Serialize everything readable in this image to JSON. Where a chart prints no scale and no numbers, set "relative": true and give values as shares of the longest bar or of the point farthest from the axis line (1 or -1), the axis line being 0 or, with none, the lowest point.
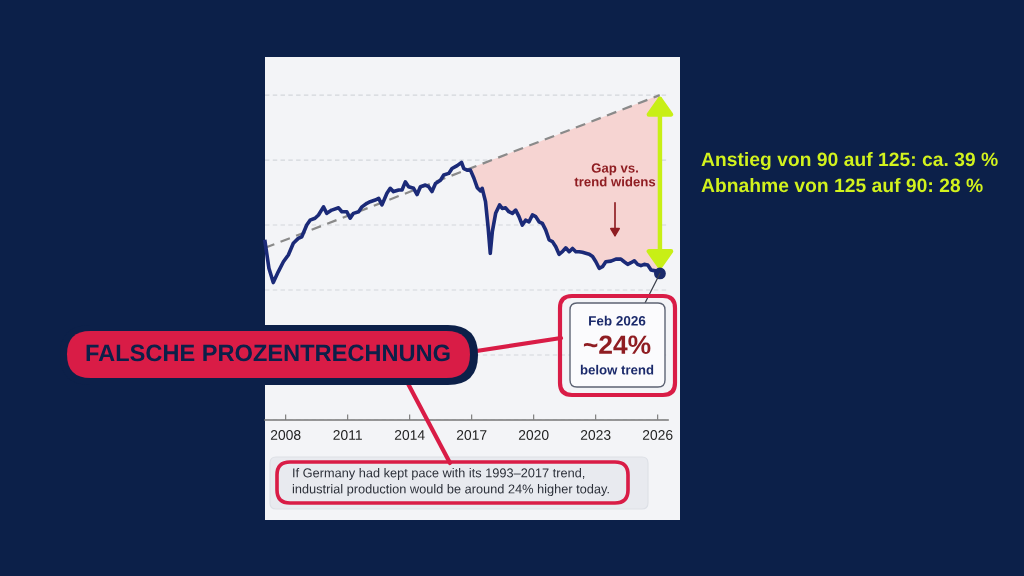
{
  "chart_data": {
    "type": "line",
    "relative": true,
    "tick_labels": "x",
    "grid": "y",
    "xlim": [
      2007.0,
      2026.5
    ],
    "xticks": [
      2008,
      2011,
      2014,
      2017,
      2020,
      2023,
      2026
    ],
    "series": [
      {
        "type": "area",
        "color": "#f6d4d2",
        "x": [
          2016.94,
          2017.11,
          2017.27,
          2017.43,
          2017.51,
          2017.67,
          2017.8,
          2017.9,
          2018.0,
          2018.16,
          2018.35,
          2018.48,
          2018.64,
          2018.8,
          2018.97,
          2019.13,
          2019.29,
          2019.45,
          2019.61,
          2019.77,
          2019.94,
          2020.1,
          2020.26,
          2020.42,
          2020.58,
          2020.75,
          2020.91,
          2021.07,
          2021.23,
          2021.39,
          2021.55,
          2021.72,
          2021.88,
          2022.04,
          2022.2,
          2022.36,
          2022.52,
          2022.69,
          2022.85,
          2023.01,
          2023.17,
          2023.33,
          2023.49,
          2023.74,
          2023.98,
          2024.22,
          2024.38,
          2024.55,
          2024.71,
          2024.87,
          2025.03,
          2025.19,
          2025.35,
          2025.52,
          2025.68,
          2025.89,
          2026.11
        ],
        "values": [
          0.775,
          0.779,
          0.783,
          0.787,
          0.789,
          0.793,
          0.796,
          0.798,
          0.801,
          0.805,
          0.809,
          0.812,
          0.816,
          0.82,
          0.825,
          0.828,
          0.832,
          0.836,
          0.84,
          0.844,
          0.848,
          0.852,
          0.856,
          0.86,
          0.864,
          0.868,
          0.872,
          0.876,
          0.88,
          0.884,
          0.888,
          0.892,
          0.896,
          0.9,
          0.904,
          0.908,
          0.912,
          0.916,
          0.92,
          0.924,
          0.928,
          0.932,
          0.936,
          0.942,
          0.948,
          0.954,
          0.958,
          0.962,
          0.966,
          0.97,
          0.974,
          0.978,
          0.982,
          0.986,
          0.99,
          0.995,
          1.0
        ]
      },
      {
        "color": "#8a8a8a",
        "line_style": "dashed",
        "x": [
          2007.0,
          2026.1
        ],
        "values": [
          0.53,
          1.0
        ]
      },
      {
        "color": "#1b2a78",
        "line_style": "solid",
        "x": [
          2007.0,
          2007.19,
          2007.4,
          2007.64,
          2007.89,
          2008.13,
          2008.37,
          2008.61,
          2008.78,
          2009.02,
          2009.18,
          2009.42,
          2009.59,
          2009.83,
          2009.99,
          2010.23,
          2010.56,
          2010.72,
          2010.96,
          2011.12,
          2011.28,
          2011.53,
          2011.69,
          2011.93,
          2012.09,
          2012.33,
          2012.5,
          2012.66,
          2012.9,
          2013.06,
          2013.22,
          2013.47,
          2013.63,
          2013.79,
          2013.95,
          2014.19,
          2014.36,
          2014.52,
          2014.76,
          2014.92,
          2015.08,
          2015.25,
          2015.49,
          2015.65,
          2015.89,
          2016.05,
          2016.3,
          2016.51,
          2016.62,
          2016.78,
          2016.94,
          2017.11,
          2017.27,
          2017.43,
          2017.51,
          2017.67,
          2017.8,
          2017.9,
          2018.0,
          2018.16,
          2018.35,
          2018.48,
          2018.64,
          2018.8,
          2018.97,
          2019.13,
          2019.29,
          2019.45,
          2019.61,
          2019.77,
          2019.94,
          2020.1,
          2020.26,
          2020.42,
          2020.58,
          2020.75,
          2020.91,
          2021.07,
          2021.23,
          2021.39,
          2021.55,
          2021.72,
          2021.88,
          2022.04,
          2022.2,
          2022.36,
          2022.52,
          2022.69,
          2022.85,
          2023.01,
          2023.17,
          2023.33,
          2023.49,
          2023.74,
          2023.98,
          2024.22,
          2024.38,
          2024.55,
          2024.71,
          2024.87,
          2025.03,
          2025.19,
          2025.35,
          2025.52,
          2025.68,
          2025.89,
          2026.11
        ],
        "values": [
          0.549,
          0.467,
          0.423,
          0.456,
          0.487,
          0.508,
          0.544,
          0.559,
          0.564,
          0.6,
          0.615,
          0.621,
          0.631,
          0.656,
          0.636,
          0.646,
          0.653,
          0.641,
          0.641,
          0.621,
          0.636,
          0.641,
          0.656,
          0.667,
          0.672,
          0.677,
          0.682,
          0.662,
          0.698,
          0.713,
          0.703,
          0.708,
          0.708,
          0.733,
          0.718,
          0.713,
          0.694,
          0.718,
          0.723,
          0.718,
          0.703,
          0.728,
          0.738,
          0.754,
          0.759,
          0.774,
          0.783,
          0.793,
          0.774,
          0.769,
          0.769,
          0.744,
          0.715,
          0.705,
          0.713,
          0.672,
          0.59,
          0.513,
          0.58,
          0.636,
          0.662,
          0.651,
          0.653,
          0.641,
          0.636,
          0.646,
          0.626,
          0.6,
          0.615,
          0.61,
          0.631,
          0.626,
          0.61,
          0.605,
          0.585,
          0.554,
          0.549,
          0.533,
          0.51,
          0.518,
          0.53,
          0.518,
          0.528,
          0.518,
          0.518,
          0.516,
          0.513,
          0.51,
          0.503,
          0.487,
          0.467,
          0.472,
          0.487,
          0.489,
          0.495,
          0.495,
          0.487,
          0.479,
          0.484,
          0.49,
          0.479,
          0.475,
          0.479,
          0.477,
          0.462,
          0.459,
          0.451
        ]
      }
    ],
    "annotations": [
      "Gap vs.\ntrend widens",
      {
        "text": "Feb 2026\n~24%\nbelow trend",
        "x": 2026.11,
        "y": 0.451
      },
      "If Germany had kept pace with its 1993–2017 trend,\nindustrial production would be around 24% higher today.",
      "FALSCHE PROZENTRECHNUNG",
      "Anstieg von 90 auf 125: ca. 39 %",
      "Abnahme von 125 auf 90: 28 %"
    ]
  }
}
